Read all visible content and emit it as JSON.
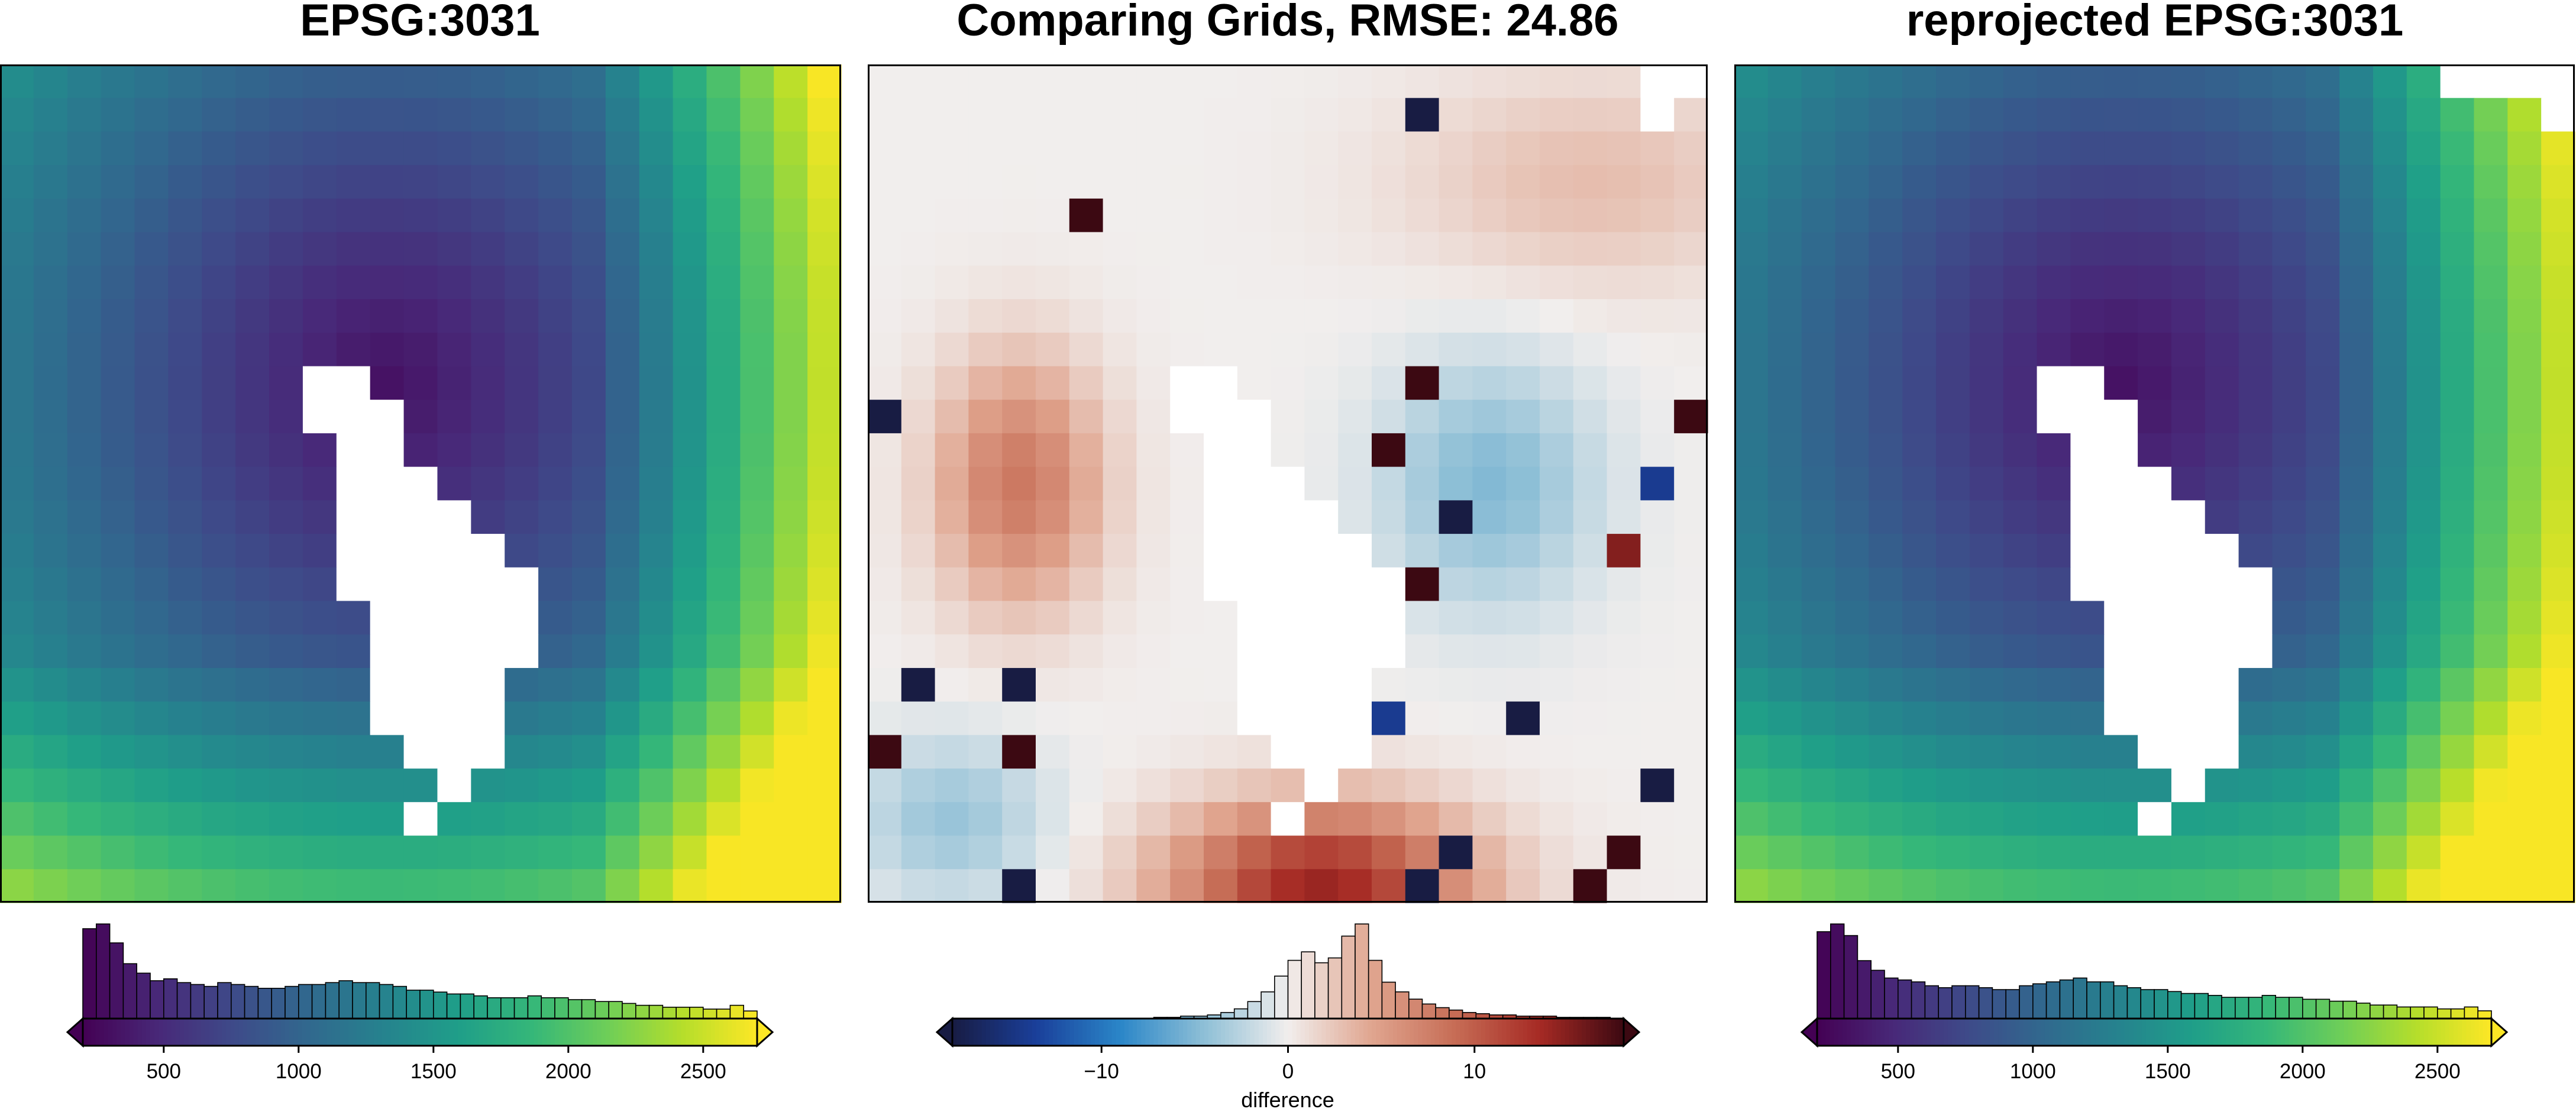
{
  "colors": {
    "viridis": [
      "#440154",
      "#482878",
      "#3e4a89",
      "#31688e",
      "#26828e",
      "#1f9e89",
      "#35b779",
      "#6ece58",
      "#b5de2b",
      "#fde725"
    ],
    "balance": [
      "#181c43",
      "#1a3f9a",
      "#2a86c8",
      "#8ebfd6",
      "#f1eeed",
      "#e0a58f",
      "#c66c55",
      "#a62a24",
      "#3c0912"
    ],
    "nan": "#ffffff",
    "frame": "#000000"
  },
  "chart_data": [
    {
      "type": "heatmap",
      "title": "EPSG:3031",
      "colormap": "viridis",
      "grid": false,
      "rows": 25,
      "cols": 25,
      "zlim": [
        200,
        2700
      ],
      "field": "original",
      "colorbar": {
        "ticks": [
          500,
          1000,
          1500,
          2000,
          2500
        ],
        "label": "",
        "range": [
          200,
          2700
        ],
        "extend": "both",
        "histogram": [
          95,
          100,
          80,
          58,
          48,
          40,
          42,
          38,
          36,
          34,
          38,
          36,
          34,
          32,
          32,
          34,
          36,
          36,
          38,
          40,
          38,
          38,
          36,
          34,
          30,
          30,
          28,
          26,
          26,
          24,
          22,
          22,
          22,
          24,
          22,
          22,
          20,
          20,
          18,
          18,
          16,
          14,
          14,
          12,
          12,
          12,
          10,
          10,
          14,
          8
        ]
      }
    },
    {
      "type": "heatmap",
      "title": "Comparing Grids, RMSE: 24.86",
      "colormap": "balance",
      "grid": false,
      "rows": 25,
      "cols": 25,
      "zlim": [
        -18,
        18
      ],
      "field": "difference",
      "colorbar": {
        "ticks": [
          -10,
          0,
          10
        ],
        "tick_labels": [
          "−10",
          "0",
          "10"
        ],
        "label": "difference",
        "range": [
          -18,
          18
        ],
        "extend": "both",
        "histogram": [
          0,
          0,
          0,
          0,
          0,
          0,
          0,
          0,
          0,
          0,
          0,
          0,
          0,
          0,
          0,
          1,
          1,
          2,
          2,
          3,
          5,
          8,
          14,
          22,
          35,
          48,
          55,
          46,
          50,
          68,
          78,
          48,
          30,
          22,
          16,
          12,
          9,
          7,
          5,
          4,
          3,
          3,
          2,
          2,
          2,
          1,
          1,
          1,
          1,
          0
        ]
      }
    },
    {
      "type": "heatmap",
      "title": "reprojected EPSG:3031",
      "colormap": "viridis",
      "grid": false,
      "rows": 25,
      "cols": 25,
      "zlim": [
        200,
        2700
      ],
      "field": "reprojected",
      "colorbar": {
        "ticks": [
          500,
          1000,
          1500,
          2000,
          2500
        ],
        "label": "",
        "range": [
          200,
          2700
        ],
        "extend": "both",
        "histogram": [
          90,
          98,
          86,
          60,
          50,
          42,
          40,
          38,
          34,
          32,
          34,
          34,
          32,
          30,
          30,
          34,
          36,
          38,
          40,
          42,
          38,
          38,
          34,
          32,
          30,
          30,
          28,
          26,
          26,
          24,
          22,
          22,
          22,
          24,
          22,
          22,
          20,
          20,
          18,
          18,
          16,
          14,
          14,
          12,
          12,
          12,
          10,
          10,
          12,
          8
        ]
      }
    }
  ]
}
